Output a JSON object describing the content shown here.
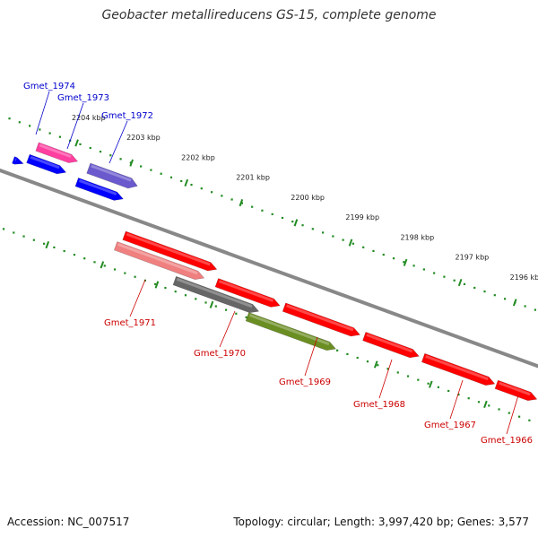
{
  "title": "Geobacter metallireducens GS-15, complete genome",
  "footer": {
    "accession": "Accession: NC_007517",
    "summary": "Topology: circular; Length: 3,997,420 bp; Genes: 3,577"
  },
  "ruler": {
    "ticks": [
      {
        "label": "2204 kbp",
        "kbp": 2204
      },
      {
        "label": "2203 kbp",
        "kbp": 2203
      },
      {
        "label": "2202 kbp",
        "kbp": 2202
      },
      {
        "label": "2201 kbp",
        "kbp": 2201
      },
      {
        "label": "2200 kbp",
        "kbp": 2200
      },
      {
        "label": "2199 kbp",
        "kbp": 2199
      },
      {
        "label": "2198 kbp",
        "kbp": 2198
      },
      {
        "label": "2197 kbp",
        "kbp": 2197
      },
      {
        "label": "2196 kbp",
        "kbp": 2196
      }
    ]
  },
  "genes": {
    "forward": [
      {
        "label": "Gmet_1974",
        "color": "#ff3fa0",
        "label_color": "#0000cc"
      },
      {
        "label": "Gmet_1973",
        "color": "#0000ff",
        "label_color": "#0000cc"
      },
      {
        "label": "Gmet_1972",
        "color": "#6a5acd",
        "label_color": "#0000cc"
      }
    ],
    "extra_forward": [
      {
        "color": "#0000ff"
      },
      {
        "color": "#0000ff"
      }
    ],
    "reverse": [
      {
        "label": "Gmet_1971",
        "color": "#f08080",
        "label_color": "#cc0000"
      },
      {
        "label": "Gmet_1970",
        "color": "#666666",
        "label_color": "#cc0000"
      },
      {
        "label": "Gmet_1969",
        "color": "#6b8e23",
        "label_color": "#cc0000"
      },
      {
        "label": "Gmet_1968",
        "color": "#ff0000",
        "label_color": "#cc0000"
      },
      {
        "label": "Gmet_1967",
        "color": "#ff0000",
        "label_color": "#cc0000"
      },
      {
        "label": "Gmet_1966",
        "color": "#ff0000",
        "label_color": "#cc0000"
      }
    ],
    "extra_reverse": [
      {
        "color": "#ff0000"
      },
      {
        "color": "#ff0000"
      }
    ]
  },
  "colors": {
    "backbone": "#888888",
    "tick": "#228b22"
  }
}
